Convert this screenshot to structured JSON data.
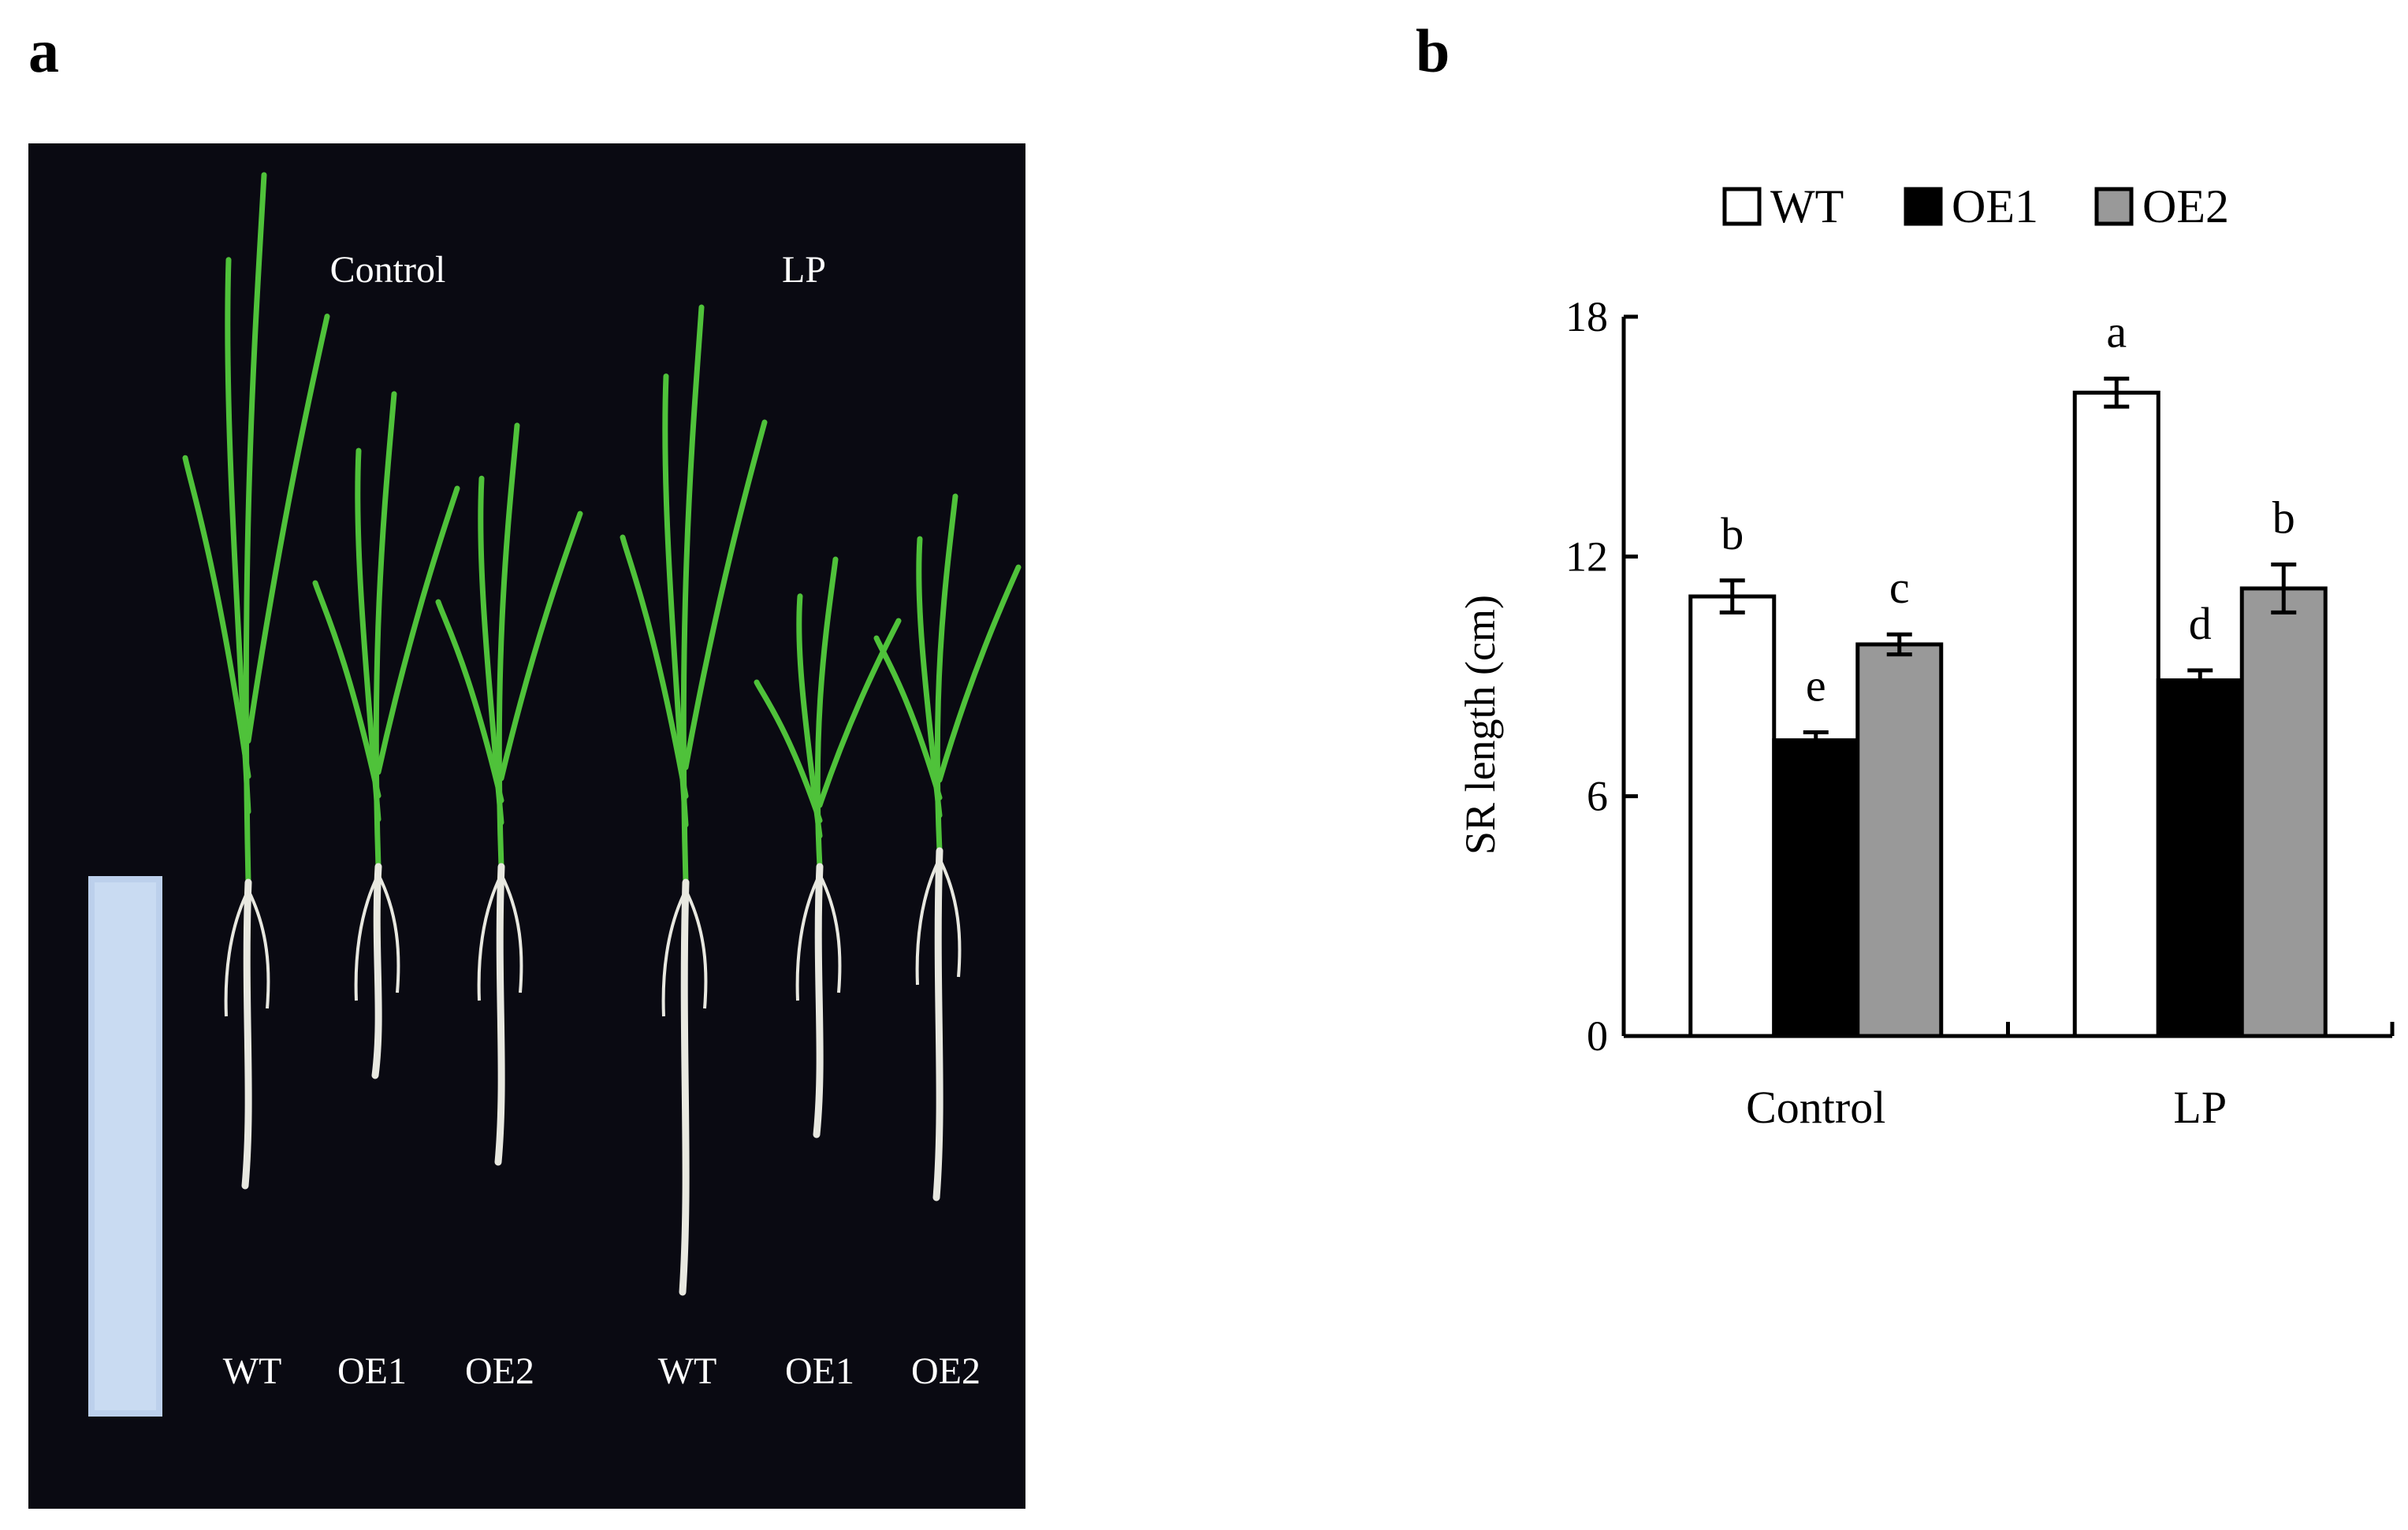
{
  "panels": {
    "a": "a",
    "b": "b"
  },
  "photo": {
    "group_labels": [
      "Control",
      "LP"
    ],
    "plant_labels": [
      "WT",
      "OE1",
      "OE2",
      "WT",
      "OE1",
      "OE2"
    ]
  },
  "colors": {
    "photo_background": "#0a0a12",
    "leaf": "#4fc23a",
    "root": "#e8e8e0",
    "ruler": "#bcd0ec",
    "WT": "#ffffff",
    "OE1": "#000000",
    "OE2": "#999999"
  },
  "chart_data": {
    "type": "bar",
    "title": "",
    "xlabel": "",
    "ylabel": "SR length (cm)",
    "categories": [
      "Control",
      "LP"
    ],
    "ylim": [
      0,
      18
    ],
    "yticks": [
      0,
      6,
      12,
      18
    ],
    "legend_position": "top",
    "grid": false,
    "series": [
      {
        "name": "WT",
        "values": [
          11.0,
          16.1
        ],
        "errors": [
          0.4,
          0.35
        ],
        "letters": [
          "b",
          "a"
        ]
      },
      {
        "name": "OE1",
        "values": [
          7.4,
          8.9
        ],
        "errors": [
          0.2,
          0.25
        ],
        "letters": [
          "e",
          "d"
        ]
      },
      {
        "name": "OE2",
        "values": [
          9.8,
          11.2
        ],
        "errors": [
          0.25,
          0.6
        ],
        "letters": [
          "c",
          "b"
        ]
      }
    ]
  }
}
